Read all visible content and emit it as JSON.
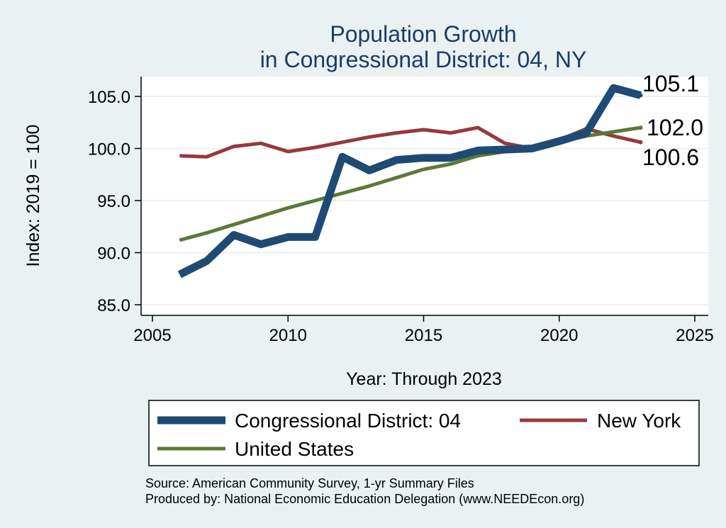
{
  "chart_data": {
    "type": "line",
    "title": "Population Growth",
    "subtitle": "in Congressional District: 04, NY",
    "xlabel": "Year: Through 2023",
    "ylabel": "Index: 2019 = 100",
    "xlim": [
      2005,
      2025
    ],
    "ylim": [
      85,
      106
    ],
    "xticks": [
      2005,
      2010,
      2015,
      2020,
      2025
    ],
    "yticks": [
      85,
      90,
      95,
      100,
      105
    ],
    "xtick_labels": [
      "2005",
      "2010",
      "2015",
      "2020",
      "2025"
    ],
    "ytick_labels": [
      "85.0",
      "90.0",
      "95.0",
      "100.0",
      "105.0"
    ],
    "grid": true,
    "legend_position": "bottom",
    "x": [
      2006,
      2007,
      2008,
      2009,
      2010,
      2011,
      2012,
      2013,
      2014,
      2015,
      2016,
      2017,
      2018,
      2019,
      2020,
      2021,
      2022,
      2023
    ],
    "series": [
      {
        "name": "Congressional District: 04",
        "color": "#1f4a73",
        "values": [
          87.9,
          89.2,
          91.7,
          90.8,
          91.5,
          91.5,
          99.2,
          97.9,
          98.9,
          99.1,
          99.1,
          99.8,
          99.9,
          100.0,
          100.7,
          101.5,
          105.8,
          105.1
        ],
        "end_label": "105.1"
      },
      {
        "name": "New York",
        "color": "#953a3d",
        "values": [
          99.3,
          99.2,
          100.2,
          100.5,
          99.7,
          100.1,
          100.6,
          101.1,
          101.5,
          101.8,
          101.5,
          102.0,
          100.5,
          100.0,
          100.8,
          101.9,
          101.2,
          100.6
        ],
        "end_label": "100.6"
      },
      {
        "name": "United States",
        "color": "#5a7a37",
        "values": [
          91.2,
          91.9,
          92.7,
          93.5,
          94.3,
          95.0,
          95.7,
          96.4,
          97.2,
          98.0,
          98.5,
          99.3,
          99.7,
          100.0,
          100.6,
          101.2,
          101.6,
          102.0
        ],
        "end_label": "102.0"
      }
    ],
    "source_note": "Source: American Community Survey, 1-yr Summary Files",
    "producer_note": "Produced by: National Economic Education Delegation (www.NEEDEcon.org)"
  }
}
